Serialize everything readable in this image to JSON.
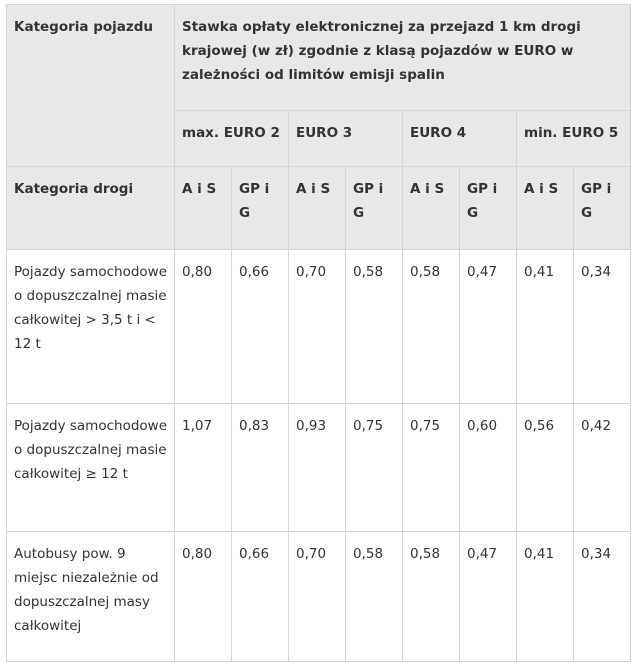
{
  "table": {
    "header": {
      "vehicle_category": "Kategoria pojazdu",
      "rate_title": "Stawka opłaty elektronicznej za przejazd 1 km drogi krajowej (w zł) zgodnie z klasą pojazdów w EURO w zależności od limitów emisji spalin",
      "euro_classes": [
        "max. EURO 2",
        "EURO 3",
        "EURO 4",
        "min. EURO 5"
      ],
      "road_category": "Kategoria drogi",
      "road_types": [
        "A i S",
        "GP i G",
        "A i S",
        "GP i G",
        "A i S",
        "GP i G",
        "A i S",
        "GP i G"
      ]
    },
    "rows": [
      {
        "label": "Pojazdy samochodowe o dopuszczalnej masie całkowitej > 3,5 t i < 12 t",
        "values": [
          "0,80",
          "0,66",
          "0,70",
          "0,58",
          "0,58",
          "0,47",
          "0,41",
          "0,34"
        ]
      },
      {
        "label": "Pojazdy samochodowe o dopuszczalnej masie całkowitej ≥ 12 t",
        "values": [
          "1,07",
          "0,83",
          "0,93",
          "0,75",
          "0,75",
          "0,60",
          "0,56",
          "0,42"
        ]
      },
      {
        "label": "Autobusy pow. 9 miejsc niezależnie od dopuszczalnej masy całkowitej",
        "values": [
          "0,80",
          "0,66",
          "0,70",
          "0,58",
          "0,58",
          "0,47",
          "0,41",
          "0,34"
        ]
      }
    ]
  }
}
